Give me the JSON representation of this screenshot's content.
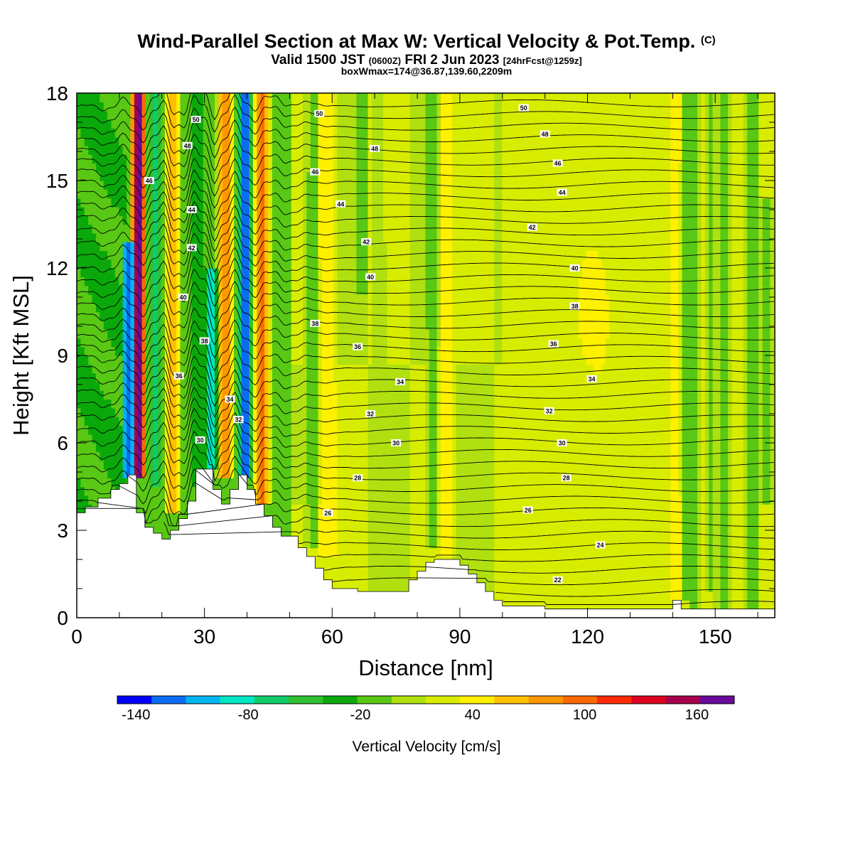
{
  "chart_data": {
    "type": "heatmap",
    "title": "Wind-Parallel Section at Max W: Vertical Velocity & Pot.Temp.",
    "copyright_mark": "(C)",
    "subtitle_main": "Valid 1500 JST",
    "subtitle_utc": "(0600Z)",
    "subtitle_date": "FRI 2 Jun 2023",
    "subtitle_run": "[24hrFcst@1259z]",
    "subtitle2": "boxWmax=174@36.87,139.60,2209m",
    "xlabel": "Distance [nm]",
    "ylabel": "Height [Kft MSL]",
    "xlim": [
      0,
      164
    ],
    "ylim": [
      0,
      18
    ],
    "xticks": [
      "0",
      "30",
      "60",
      "90",
      "120",
      "150"
    ],
    "yticks": [
      "0",
      "3",
      "6",
      "9",
      "12",
      "15",
      "18"
    ],
    "colorbar": {
      "label": "Vertical Velocity [cm/s]",
      "ticks": [
        "-140",
        "-80",
        "-20",
        "40",
        "100",
        "160"
      ],
      "range": [
        -150,
        180
      ],
      "colors": [
        "#0000ff",
        "#0a6cf5",
        "#00b6f0",
        "#00e6c4",
        "#10cc6a",
        "#30c030",
        "#0aa80a",
        "#58c814",
        "#b0e010",
        "#d8ec00",
        "#fff000",
        "#ffc000",
        "#ff9800",
        "#ff6a00",
        "#ff2a00",
        "#dc0020",
        "#a8004a",
        "#6a0a9a"
      ]
    },
    "contour_labels": [
      {
        "x": 28,
        "y": 17.1,
        "text": "50"
      },
      {
        "x": 57,
        "y": 17.3,
        "text": "50"
      },
      {
        "x": 105,
        "y": 17.5,
        "text": "50"
      },
      {
        "x": 26,
        "y": 16.2,
        "text": "48"
      },
      {
        "x": 70,
        "y": 16.1,
        "text": "48"
      },
      {
        "x": 110,
        "y": 16.6,
        "text": "48"
      },
      {
        "x": 17,
        "y": 15.0,
        "text": "46"
      },
      {
        "x": 56,
        "y": 15.3,
        "text": "46"
      },
      {
        "x": 113,
        "y": 15.6,
        "text": "46"
      },
      {
        "x": 27,
        "y": 14.0,
        "text": "44"
      },
      {
        "x": 62,
        "y": 14.2,
        "text": "44"
      },
      {
        "x": 114,
        "y": 14.6,
        "text": "44"
      },
      {
        "x": 27,
        "y": 12.7,
        "text": "42"
      },
      {
        "x": 68,
        "y": 12.9,
        "text": "42"
      },
      {
        "x": 107,
        "y": 13.4,
        "text": "42"
      },
      {
        "x": 25,
        "y": 11.0,
        "text": "40"
      },
      {
        "x": 69,
        "y": 11.7,
        "text": "40"
      },
      {
        "x": 117,
        "y": 12.0,
        "text": "40"
      },
      {
        "x": 56,
        "y": 10.1,
        "text": "38"
      },
      {
        "x": 30,
        "y": 9.5,
        "text": "38"
      },
      {
        "x": 117,
        "y": 10.7,
        "text": "38"
      },
      {
        "x": 24,
        "y": 8.3,
        "text": "36"
      },
      {
        "x": 66,
        "y": 9.3,
        "text": "36"
      },
      {
        "x": 112,
        "y": 9.4,
        "text": "36"
      },
      {
        "x": 36,
        "y": 7.5,
        "text": "34"
      },
      {
        "x": 76,
        "y": 8.1,
        "text": "34"
      },
      {
        "x": 121,
        "y": 8.2,
        "text": "34"
      },
      {
        "x": 38,
        "y": 6.8,
        "text": "32"
      },
      {
        "x": 69,
        "y": 7.0,
        "text": "32"
      },
      {
        "x": 111,
        "y": 7.1,
        "text": "32"
      },
      {
        "x": 29,
        "y": 6.1,
        "text": "30"
      },
      {
        "x": 75,
        "y": 6.0,
        "text": "30"
      },
      {
        "x": 114,
        "y": 6.0,
        "text": "30"
      },
      {
        "x": 66,
        "y": 4.8,
        "text": "28"
      },
      {
        "x": 115,
        "y": 4.8,
        "text": "28"
      },
      {
        "x": 59,
        "y": 3.6,
        "text": "26"
      },
      {
        "x": 106,
        "y": 3.7,
        "text": "26"
      },
      {
        "x": 123,
        "y": 2.5,
        "text": "24"
      },
      {
        "x": 113,
        "y": 1.3,
        "text": "22"
      }
    ],
    "terrain": [
      [
        0,
        3.6
      ],
      [
        2,
        3.6
      ],
      [
        2,
        3.8
      ],
      [
        5,
        3.8
      ],
      [
        5,
        4.1
      ],
      [
        8,
        4.1
      ],
      [
        8,
        4.4
      ],
      [
        10,
        4.4
      ],
      [
        10,
        4.6
      ],
      [
        12,
        4.6
      ],
      [
        12,
        4.9
      ],
      [
        14,
        4.9
      ],
      [
        14,
        3.6
      ],
      [
        16,
        3.6
      ],
      [
        16,
        3.1
      ],
      [
        18,
        3.1
      ],
      [
        18,
        2.9
      ],
      [
        20,
        2.9
      ],
      [
        20,
        2.7
      ],
      [
        22,
        2.7
      ],
      [
        22,
        3.0
      ],
      [
        24,
        3.0
      ],
      [
        24,
        3.4
      ],
      [
        26,
        3.4
      ],
      [
        26,
        4.0
      ],
      [
        28,
        4.0
      ],
      [
        28,
        5.1
      ],
      [
        32,
        5.1
      ],
      [
        32,
        4.4
      ],
      [
        34,
        4.4
      ],
      [
        34,
        3.9
      ],
      [
        36,
        3.9
      ],
      [
        36,
        4.4
      ],
      [
        38,
        4.4
      ],
      [
        38,
        4.9
      ],
      [
        40,
        4.9
      ],
      [
        40,
        4.4
      ],
      [
        42,
        4.4
      ],
      [
        42,
        3.9
      ],
      [
        44,
        3.9
      ],
      [
        44,
        3.5
      ],
      [
        46,
        3.5
      ],
      [
        46,
        3.1
      ],
      [
        48,
        3.1
      ],
      [
        48,
        2.8
      ],
      [
        52,
        2.8
      ],
      [
        52,
        2.4
      ],
      [
        54,
        2.4
      ],
      [
        54,
        2.1
      ],
      [
        56,
        2.1
      ],
      [
        56,
        1.7
      ],
      [
        58,
        1.7
      ],
      [
        58,
        1.3
      ],
      [
        60,
        1.3
      ],
      [
        60,
        1.0
      ],
      [
        66,
        1.0
      ],
      [
        66,
        0.9
      ],
      [
        78,
        0.9
      ],
      [
        78,
        1.3
      ],
      [
        80,
        1.3
      ],
      [
        80,
        1.6
      ],
      [
        82,
        1.6
      ],
      [
        82,
        1.9
      ],
      [
        84,
        1.9
      ],
      [
        84,
        2.0
      ],
      [
        90,
        2.0
      ],
      [
        90,
        1.8
      ],
      [
        92,
        1.8
      ],
      [
        92,
        1.5
      ],
      [
        94,
        1.5
      ],
      [
        94,
        1.2
      ],
      [
        96,
        1.2
      ],
      [
        96,
        0.9
      ],
      [
        98,
        0.9
      ],
      [
        98,
        0.6
      ],
      [
        100,
        0.6
      ],
      [
        100,
        0.4
      ],
      [
        110,
        0.4
      ],
      [
        110,
        0.3
      ],
      [
        140,
        0.3
      ],
      [
        140,
        0.6
      ],
      [
        142,
        0.6
      ],
      [
        142,
        0.3
      ],
      [
        164,
        0.3
      ]
    ],
    "w_features": [
      {
        "x": 14.5,
        "w": 2.0,
        "y0": 4.9,
        "y1": 18,
        "v": 170
      },
      {
        "x": 12.2,
        "w": 1.8,
        "y0": 4.9,
        "y1": 13,
        "v": -130
      },
      {
        "x": 18.5,
        "w": 1.6,
        "y0": 4.5,
        "y1": 18,
        "v": -70
      },
      {
        "x": 22.5,
        "w": 2.0,
        "y0": 3.5,
        "y1": 18,
        "v": 70
      },
      {
        "x": 28.5,
        "w": 2.0,
        "y0": 4.5,
        "y1": 18,
        "v": -40
      },
      {
        "x": 31.5,
        "w": 1.6,
        "y0": 5.2,
        "y1": 12,
        "v": -90
      },
      {
        "x": 35.0,
        "w": 2.2,
        "y0": 4.8,
        "y1": 18,
        "v": 90
      },
      {
        "x": 39.5,
        "w": 1.8,
        "y0": 4.9,
        "y1": 18,
        "v": -130
      },
      {
        "x": 43.5,
        "w": 2.2,
        "y0": 4.0,
        "y1": 18,
        "v": 90
      },
      {
        "x": 55.5,
        "w": 2.5,
        "y0": 2.5,
        "y1": 18,
        "v": -10
      },
      {
        "x": 59.0,
        "w": 2.5,
        "y0": 2.2,
        "y1": 18,
        "v": 50
      },
      {
        "x": 67.0,
        "w": 1.6,
        "y0": 11.0,
        "y1": 18,
        "v": -20
      },
      {
        "x": 71.0,
        "w": 2.0,
        "y0": 2.0,
        "y1": 18,
        "v": 5
      },
      {
        "x": 83.5,
        "w": 1.6,
        "y0": 2.5,
        "y1": 18,
        "v": -20
      },
      {
        "x": 87.0,
        "w": 2.0,
        "y0": 2.0,
        "y1": 18,
        "v": 45
      },
      {
        "x": 121.0,
        "w": 6.0,
        "y0": 7.5,
        "y1": 13.5,
        "v": 40
      },
      {
        "x": 140.5,
        "w": 1.6,
        "y0": 0.6,
        "y1": 18,
        "v": 50
      },
      {
        "x": 143.0,
        "w": 1.2,
        "y0": 0.6,
        "y1": 18,
        "v": -15
      },
      {
        "x": 149.0,
        "w": 1.6,
        "y0": 1.0,
        "y1": 18,
        "v": -10
      },
      {
        "x": 162.0,
        "w": 2.0,
        "y0": 4.0,
        "y1": 14.5,
        "v": -10
      }
    ]
  }
}
